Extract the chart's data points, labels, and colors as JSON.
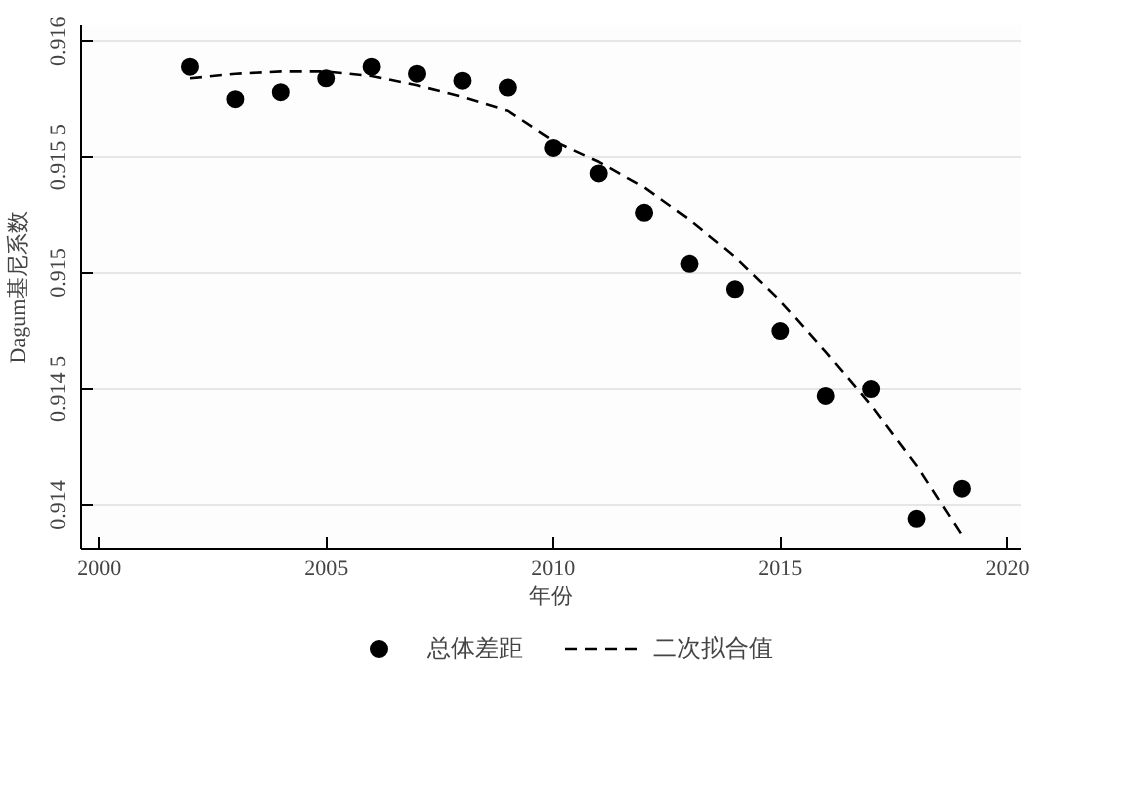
{
  "chart_data": {
    "type": "scatter",
    "xlabel": "年份",
    "ylabel": "Dagum基尼系数",
    "xlim": [
      1999.6,
      2020.3
    ],
    "ylim": [
      0.91381,
      0.91607
    ],
    "xticks": [
      2000,
      2005,
      2010,
      2015,
      2020
    ],
    "yticks": [
      {
        "value": 0.914,
        "label": "0.914"
      },
      {
        "value": 0.9145,
        "label": "0.914 5"
      },
      {
        "value": 0.915,
        "label": "0.915"
      },
      {
        "value": 0.9155,
        "label": "0.915 5"
      },
      {
        "value": 0.916,
        "label": "0.916"
      }
    ],
    "grid": "y",
    "legend": "bottom",
    "series": [
      {
        "name": "总体差距",
        "type": "scatter",
        "marker": "circle",
        "color": "#000000",
        "x": [
          2002,
          2003,
          2004,
          2005,
          2006,
          2007,
          2008,
          2009,
          2010,
          2011,
          2012,
          2013,
          2014,
          2015,
          2016,
          2017,
          2018,
          2019
        ],
        "values": [
          0.91589,
          0.91575,
          0.91578,
          0.91584,
          0.91589,
          0.91586,
          0.91583,
          0.9158,
          0.91554,
          0.91543,
          0.91526,
          0.91504,
          0.91493,
          0.91475,
          0.91447,
          0.9145,
          0.91394,
          0.91407
        ]
      },
      {
        "name": "二次拟合值",
        "type": "line",
        "line_style": "dashed",
        "color": "#000000",
        "x": [
          2002,
          2003,
          2004,
          2005,
          2006,
          2007,
          2008,
          2009,
          2010,
          2011,
          2012,
          2013,
          2014,
          2015,
          2016,
          2017,
          2018,
          2019
        ],
        "values": [
          0.91584,
          0.91586,
          0.91587,
          0.91587,
          0.91585,
          0.91581,
          0.91576,
          0.9157,
          0.91557,
          0.91548,
          0.91537,
          0.91523,
          0.91507,
          0.91488,
          0.91466,
          0.91443,
          0.91417,
          0.91387
        ]
      }
    ]
  }
}
